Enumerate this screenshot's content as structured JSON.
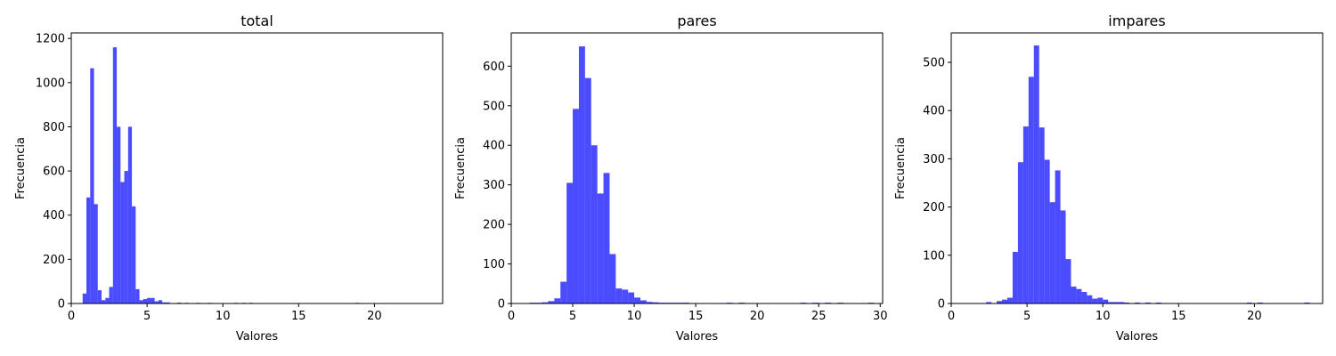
{
  "chart_data": [
    {
      "type": "bar",
      "title": "total",
      "xlabel": "Valores",
      "ylabel": "Frecuencia",
      "xlim": [
        0,
        24.5
      ],
      "ylim": [
        0,
        1225
      ],
      "xticks": [
        0,
        5,
        10,
        15,
        20
      ],
      "yticks": [
        0,
        200,
        400,
        600,
        800,
        1000,
        1200
      ],
      "bin_width": 0.25,
      "bars_color": "#0000ff",
      "bins": [
        [
          0.75,
          45
        ],
        [
          1.0,
          480
        ],
        [
          1.25,
          1065
        ],
        [
          1.5,
          450
        ],
        [
          1.75,
          60
        ],
        [
          2.0,
          15
        ],
        [
          2.25,
          25
        ],
        [
          2.5,
          75
        ],
        [
          2.75,
          1160
        ],
        [
          3.0,
          800
        ],
        [
          3.25,
          550
        ],
        [
          3.5,
          600
        ],
        [
          3.75,
          800
        ],
        [
          4.0,
          440
        ],
        [
          4.25,
          65
        ],
        [
          4.5,
          15
        ],
        [
          4.75,
          20
        ],
        [
          5.0,
          25
        ],
        [
          5.25,
          25
        ],
        [
          5.5,
          10
        ],
        [
          5.75,
          15
        ],
        [
          6.0,
          5
        ],
        [
          6.25,
          5
        ],
        [
          7.0,
          4
        ],
        [
          7.5,
          3
        ],
        [
          8.25,
          3
        ],
        [
          9.0,
          3
        ],
        [
          10.75,
          3
        ],
        [
          11.25,
          3
        ],
        [
          11.75,
          3
        ],
        [
          13.25,
          2
        ],
        [
          14.75,
          2
        ],
        [
          16.0,
          2
        ],
        [
          18.75,
          3
        ],
        [
          19.75,
          2
        ],
        [
          23.25,
          2
        ]
      ]
    },
    {
      "type": "bar",
      "title": "pares",
      "xlabel": "Valores",
      "ylabel": "Frecuencia",
      "xlim": [
        0,
        30.2
      ],
      "ylim": [
        0,
        684
      ],
      "xticks": [
        0,
        5,
        10,
        15,
        20,
        25,
        30
      ],
      "yticks": [
        0,
        100,
        200,
        300,
        400,
        500,
        600
      ],
      "bin_width": 0.5,
      "bars_color": "#0000ff",
      "bins": [
        [
          1.5,
          2
        ],
        [
          2.0,
          2
        ],
        [
          2.5,
          3
        ],
        [
          3.0,
          6
        ],
        [
          3.5,
          13
        ],
        [
          4.0,
          55
        ],
        [
          4.5,
          305
        ],
        [
          5.0,
          492
        ],
        [
          5.5,
          650
        ],
        [
          6.0,
          570
        ],
        [
          6.5,
          400
        ],
        [
          7.0,
          278
        ],
        [
          7.5,
          330
        ],
        [
          8.0,
          125
        ],
        [
          8.5,
          38
        ],
        [
          9.0,
          35
        ],
        [
          9.5,
          28
        ],
        [
          10.0,
          15
        ],
        [
          10.5,
          8
        ],
        [
          11.0,
          4
        ],
        [
          11.5,
          3
        ],
        [
          12.0,
          2
        ],
        [
          12.5,
          2
        ],
        [
          13.0,
          2
        ],
        [
          13.5,
          2
        ],
        [
          14.0,
          2
        ],
        [
          17.5,
          2
        ],
        [
          18.5,
          2
        ],
        [
          23.5,
          2
        ],
        [
          24.5,
          2
        ],
        [
          25.5,
          2
        ],
        [
          26.5,
          2
        ],
        [
          29.0,
          2
        ]
      ]
    },
    {
      "type": "bar",
      "title": "impares",
      "xlabel": "Valores",
      "ylabel": "Frecuencia",
      "xlim": [
        0,
        24.5
      ],
      "ylim": [
        0,
        561
      ],
      "xticks": [
        0,
        5,
        10,
        15,
        20
      ],
      "yticks": [
        0,
        100,
        200,
        300,
        400,
        500
      ],
      "bin_width": 0.35,
      "bars_color": "#0000ff",
      "bins": [
        [
          2.3,
          3
        ],
        [
          3.0,
          5
        ],
        [
          3.35,
          8
        ],
        [
          3.7,
          12
        ],
        [
          4.05,
          107
        ],
        [
          4.4,
          293
        ],
        [
          4.75,
          367
        ],
        [
          5.1,
          470
        ],
        [
          5.45,
          535
        ],
        [
          5.8,
          365
        ],
        [
          6.15,
          298
        ],
        [
          6.5,
          210
        ],
        [
          6.85,
          276
        ],
        [
          7.2,
          193
        ],
        [
          7.55,
          92
        ],
        [
          7.9,
          35
        ],
        [
          8.25,
          30
        ],
        [
          8.6,
          24
        ],
        [
          8.95,
          17
        ],
        [
          9.3,
          10
        ],
        [
          9.65,
          12
        ],
        [
          10.0,
          8
        ],
        [
          10.35,
          3
        ],
        [
          10.7,
          3
        ],
        [
          11.05,
          3
        ],
        [
          11.4,
          2
        ],
        [
          12.1,
          2
        ],
        [
          12.8,
          2
        ],
        [
          13.5,
          2
        ],
        [
          19.5,
          2
        ],
        [
          20.2,
          2
        ],
        [
          23.3,
          2
        ]
      ]
    }
  ]
}
